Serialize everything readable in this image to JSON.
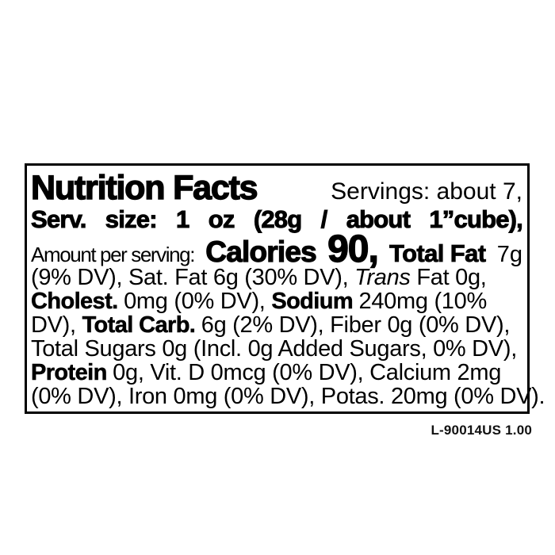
{
  "page": {
    "background_color": "#ffffff",
    "text_color": "#000000",
    "border_color": "#000000"
  },
  "label": {
    "title": "Nutrition Facts",
    "footer_code": "L-90014US 1.00",
    "nutrition_summary": {
      "servings_per_container": "about 7",
      "serving_size": "1 oz (28g / about 1”cube)",
      "calories": "90",
      "total_fat": "7g (9% DV)",
      "saturated_fat": "6g (30% DV)",
      "trans_fat": "0g",
      "cholesterol": "0mg (0% DV)",
      "sodium": "240mg (10% DV)",
      "total_carbohydrate": "6g (2% DV)",
      "dietary_fiber": "0g (0% DV)",
      "total_sugars": "0g",
      "added_sugars": "0g (0% DV)",
      "protein": "0g",
      "vitamin_d": "0mcg (0% DV)",
      "calcium": "2mg (0% DV)",
      "iron": "0mg (0% DV)",
      "potassium": "20mg (0% DV)"
    },
    "lines": [
      {
        "segments": [
          {
            "text": "Nutrition Facts"
          },
          {
            "text": "Servings: about 7,"
          }
        ]
      },
      {
        "segments": [
          {
            "text": "Serv. size: 1 oz (28g / about 1”cube),"
          }
        ]
      },
      {
        "segments": [
          {
            "text": "Amount per serving:"
          },
          {
            "text": "Calories"
          },
          {
            "text": "90,"
          },
          {
            "text": "Total Fat"
          },
          {
            "text": "7g"
          }
        ]
      },
      {
        "segments": [
          {
            "text": "(9% DV), Sat. Fat 6g (30% DV), "
          },
          {
            "text": "Trans"
          },
          {
            "text": " Fat 0g,"
          }
        ]
      },
      {
        "segments": [
          {
            "text": "Cholest. "
          },
          {
            "text": "0mg (0% DV), "
          },
          {
            "text": "Sodium "
          },
          {
            "text": "240mg (10%"
          }
        ]
      },
      {
        "segments": [
          {
            "text": "DV), "
          },
          {
            "text": "Total Carb. "
          },
          {
            "text": "6g (2% DV), Fiber 0g (0% DV),"
          }
        ]
      },
      {
        "segments": [
          {
            "text": "Total Sugars 0g (Incl. 0g Added Sugars, 0% DV),"
          }
        ]
      },
      {
        "segments": [
          {
            "text": "Protein "
          },
          {
            "text": "0g, Vit. D 0mcg (0% DV), Calcium 2mg"
          }
        ]
      },
      {
        "segments": [
          {
            "text": "(0% DV), Iron 0mg (0% DV), Potas. 20mg (0% DV)."
          }
        ]
      }
    ]
  }
}
